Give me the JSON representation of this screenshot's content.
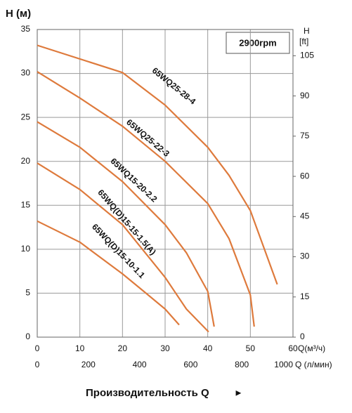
{
  "chart_data": {
    "type": "line",
    "ylabel": "H (м)",
    "y2label": "H",
    "y2unit": "[ft]",
    "xlabel": "Q(м³/ч)",
    "x2label": "Q (л/мин)",
    "annotation": "2900rpm",
    "footer": "Производительность Q",
    "footer_arrow": "►",
    "xlim": [
      0,
      60
    ],
    "xticks": [
      0,
      10,
      20,
      30,
      40,
      50,
      60
    ],
    "x2lim": [
      0,
      1000
    ],
    "x2ticks": [
      0,
      200,
      400,
      600,
      800,
      1000
    ],
    "ylim": [
      0,
      35
    ],
    "yticks": [
      0,
      5,
      10,
      15,
      20,
      25,
      30,
      35
    ],
    "y2lim": [
      0,
      114.8
    ],
    "y2ticks": [
      0,
      15,
      30,
      45,
      60,
      75,
      90,
      105
    ],
    "grid": true,
    "series": [
      {
        "name": "65WQ25-28-4",
        "color": "#de7a3c",
        "x": [
          0,
          20,
          30,
          40,
          45,
          50,
          56.3
        ],
        "values": [
          33.2,
          30.1,
          26.4,
          21.6,
          18.4,
          14.4,
          6.0
        ]
      },
      {
        "name": "65WQ25-22-3",
        "color": "#de7a3c",
        "x": [
          0,
          10,
          20,
          30,
          40,
          45,
          50,
          50.9
        ],
        "values": [
          30.2,
          27.2,
          24.0,
          20.0,
          15.2,
          11.2,
          4.8,
          1.2
        ]
      },
      {
        "name": "65WQ15-20-2.2",
        "color": "#de7a3c",
        "x": [
          0,
          10,
          20,
          30,
          35,
          40,
          41.5
        ],
        "values": [
          24.5,
          21.6,
          17.7,
          12.8,
          9.6,
          5.2,
          1.2
        ]
      },
      {
        "name": "65WQ(D)15-15-1.5(A)",
        "color": "#de7a3c",
        "x": [
          0,
          10,
          20,
          30,
          35,
          40.2
        ],
        "values": [
          19.8,
          16.8,
          12.8,
          6.8,
          3.2,
          0.6
        ]
      },
      {
        "name": "65WQ(D)15-10-1.1",
        "color": "#de7a3c",
        "x": [
          0,
          10,
          20,
          25,
          30,
          33.3
        ],
        "values": [
          13.2,
          10.8,
          7.2,
          5.2,
          3.2,
          1.4
        ]
      }
    ]
  }
}
